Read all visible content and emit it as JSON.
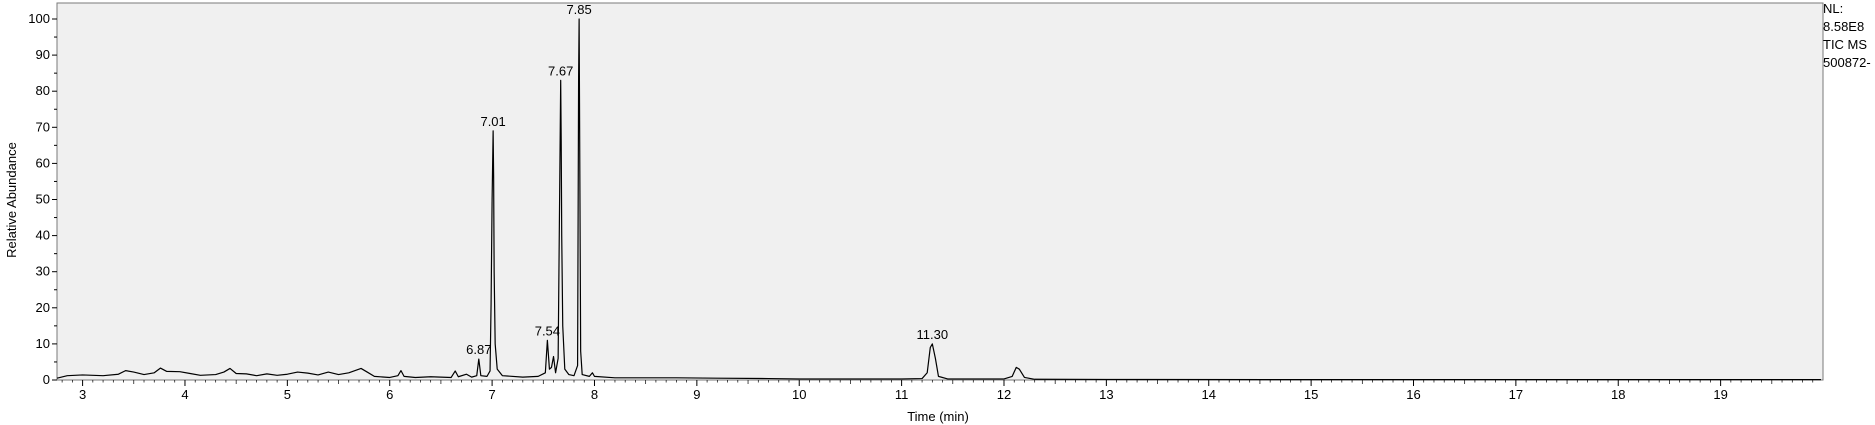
{
  "side_info": {
    "line1": "NL:",
    "line2": "8.58E8",
    "line3": "TIC  MS",
    "line4": "500872-"
  },
  "chart_data": {
    "type": "line",
    "title": "",
    "xlabel": "Time (min)",
    "ylabel": "Relative Abundance",
    "xlim": [
      2.75,
      20.0
    ],
    "ylim": [
      0,
      100
    ],
    "x_ticks": [
      3,
      4,
      5,
      6,
      7,
      8,
      9,
      10,
      11,
      12,
      13,
      14,
      15,
      16,
      17,
      18,
      19
    ],
    "y_ticks": [
      0,
      10,
      20,
      30,
      40,
      50,
      60,
      70,
      80,
      90,
      100
    ],
    "grid": false,
    "colors": {
      "trace": "#000000",
      "plot_bg": "#f0f0f0",
      "frame": "#7a7a7a",
      "label_leader": "#00a060"
    },
    "series": [
      {
        "points": [
          [
            2.75,
            0.5
          ],
          [
            2.85,
            1.2
          ],
          [
            3.0,
            1.4
          ],
          [
            3.2,
            1.2
          ],
          [
            3.35,
            1.6
          ],
          [
            3.42,
            2.6
          ],
          [
            3.5,
            2.2
          ],
          [
            3.6,
            1.5
          ],
          [
            3.7,
            2.0
          ],
          [
            3.76,
            3.3
          ],
          [
            3.82,
            2.4
          ],
          [
            3.95,
            2.3
          ],
          [
            4.05,
            1.8
          ],
          [
            4.15,
            1.3
          ],
          [
            4.3,
            1.5
          ],
          [
            4.38,
            2.2
          ],
          [
            4.44,
            3.2
          ],
          [
            4.5,
            1.8
          ],
          [
            4.6,
            1.7
          ],
          [
            4.7,
            1.2
          ],
          [
            4.8,
            1.7
          ],
          [
            4.9,
            1.3
          ],
          [
            5.0,
            1.6
          ],
          [
            5.1,
            2.2
          ],
          [
            5.2,
            1.9
          ],
          [
            5.3,
            1.4
          ],
          [
            5.4,
            2.2
          ],
          [
            5.5,
            1.5
          ],
          [
            5.6,
            2.0
          ],
          [
            5.72,
            3.2
          ],
          [
            5.78,
            2.2
          ],
          [
            5.85,
            1.0
          ],
          [
            6.0,
            0.7
          ],
          [
            6.08,
            1.2
          ],
          [
            6.11,
            2.6
          ],
          [
            6.14,
            1.0
          ],
          [
            6.25,
            0.7
          ],
          [
            6.4,
            0.9
          ],
          [
            6.5,
            0.8
          ],
          [
            6.6,
            0.7
          ],
          [
            6.64,
            2.5
          ],
          [
            6.67,
            0.9
          ],
          [
            6.75,
            1.6
          ],
          [
            6.8,
            0.8
          ],
          [
            6.85,
            1.2
          ],
          [
            6.87,
            5.8
          ],
          [
            6.89,
            1.2
          ],
          [
            6.95,
            1.0
          ],
          [
            6.98,
            2.5
          ],
          [
            6.99,
            21.0
          ],
          [
            7.0,
            50.0
          ],
          [
            7.01,
            69.0
          ],
          [
            7.015,
            56.0
          ],
          [
            7.02,
            30.0
          ],
          [
            7.03,
            10.0
          ],
          [
            7.05,
            3.0
          ],
          [
            7.1,
            1.2
          ],
          [
            7.3,
            0.8
          ],
          [
            7.45,
            1.0
          ],
          [
            7.52,
            2.0
          ],
          [
            7.54,
            11.0
          ],
          [
            7.56,
            3.0
          ],
          [
            7.58,
            3.5
          ],
          [
            7.6,
            6.5
          ],
          [
            7.62,
            2.0
          ],
          [
            7.645,
            6.0
          ],
          [
            7.66,
            52.0
          ],
          [
            7.67,
            83.0
          ],
          [
            7.675,
            66.0
          ],
          [
            7.68,
            40.0
          ],
          [
            7.69,
            15.0
          ],
          [
            7.71,
            3.0
          ],
          [
            7.75,
            1.5
          ],
          [
            7.8,
            1.2
          ],
          [
            7.835,
            4.0
          ],
          [
            7.845,
            84.0
          ],
          [
            7.85,
            100.0
          ],
          [
            7.855,
            70.0
          ],
          [
            7.865,
            8.0
          ],
          [
            7.88,
            1.5
          ],
          [
            7.95,
            1.0
          ],
          [
            7.98,
            2.0
          ],
          [
            8.0,
            1.0
          ],
          [
            8.2,
            0.6
          ],
          [
            8.5,
            0.6
          ],
          [
            8.8,
            0.6
          ],
          [
            9.2,
            0.5
          ],
          [
            9.7,
            0.4
          ],
          [
            10.0,
            0.3
          ],
          [
            10.5,
            0.3
          ],
          [
            11.0,
            0.3
          ],
          [
            11.2,
            0.4
          ],
          [
            11.25,
            2.0
          ],
          [
            11.28,
            9.0
          ],
          [
            11.3,
            10.0
          ],
          [
            11.33,
            6.0
          ],
          [
            11.36,
            1.0
          ],
          [
            11.45,
            0.3
          ],
          [
            12.0,
            0.3
          ],
          [
            12.08,
            1.0
          ],
          [
            12.12,
            3.5
          ],
          [
            12.15,
            3.0
          ],
          [
            12.2,
            0.7
          ],
          [
            12.3,
            0.2
          ],
          [
            13.0,
            0.15
          ],
          [
            15.0,
            0.1
          ],
          [
            17.0,
            0.1
          ],
          [
            19.0,
            0.1
          ],
          [
            19.98,
            0.1
          ]
        ]
      }
    ],
    "peak_labels": [
      {
        "x": 6.87,
        "y": 5.8,
        "text": "6.87"
      },
      {
        "x": 7.01,
        "y": 69.0,
        "text": "7.01"
      },
      {
        "x": 7.54,
        "y": 11.0,
        "text": "7.54"
      },
      {
        "x": 7.67,
        "y": 83.0,
        "text": "7.67"
      },
      {
        "x": 7.85,
        "y": 100.0,
        "text": "7.85"
      },
      {
        "x": 11.3,
        "y": 10.0,
        "text": "11.30"
      }
    ]
  }
}
